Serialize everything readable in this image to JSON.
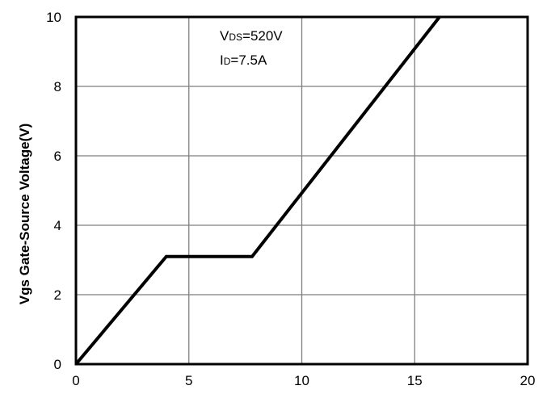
{
  "chart_data": {
    "type": "line",
    "ylabel": "Vgs Gate-Source Voltage(V)",
    "xlabel": "",
    "xlim": [
      0,
      20
    ],
    "ylim": [
      0,
      10
    ],
    "x_ticks": [
      "0",
      "5",
      "10",
      "15",
      "20"
    ],
    "y_ticks": [
      "0",
      "2",
      "4",
      "6",
      "8",
      "10"
    ],
    "grid": true,
    "series": [
      {
        "x": [
          0,
          4.0,
          7.8,
          16.1
        ],
        "y": [
          0,
          3.1,
          3.1,
          10
        ]
      }
    ],
    "annotations": {
      "vds": {
        "main": "V",
        "sub": "DS",
        "value": "=520V"
      },
      "id": {
        "main": "I",
        "sub": "D",
        "value": "=7.5A"
      }
    }
  }
}
